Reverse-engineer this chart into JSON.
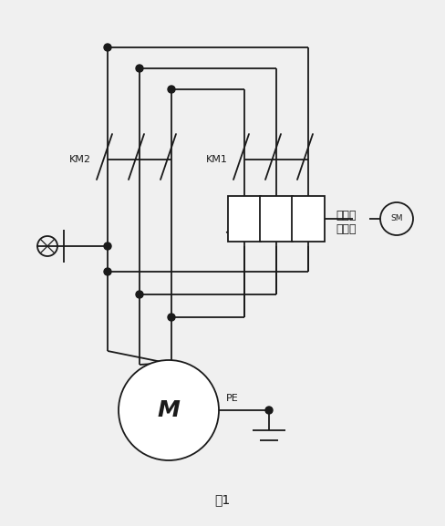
{
  "bg_color": "#f0f0f0",
  "line_color": "#1a1a1a",
  "title": "图1",
  "label_km2": "KM2",
  "label_km1": "KM1",
  "label_resistor": "可调液\n体电阻",
  "label_pe": "PE",
  "label_sm": "SM",
  "figsize": [
    4.89,
    5.77
  ],
  "dpi": 100
}
